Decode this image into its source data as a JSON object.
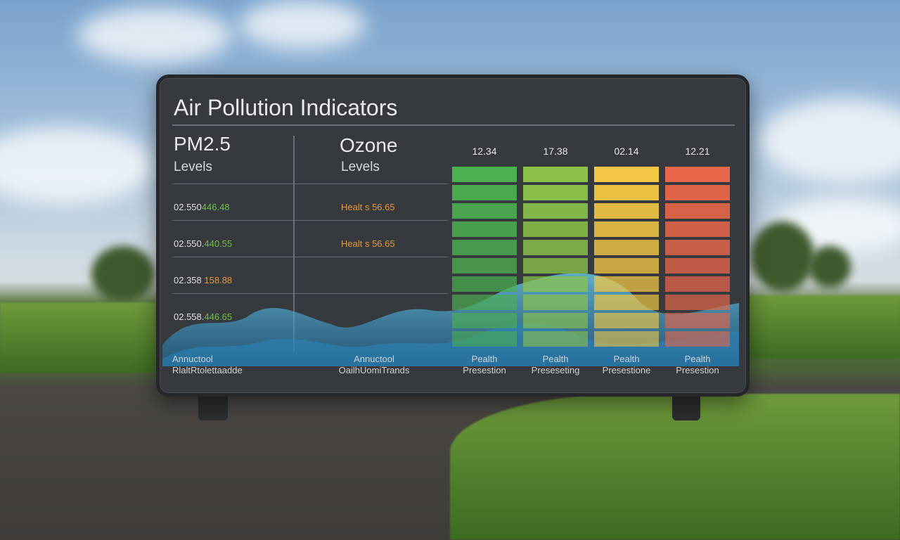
{
  "scene": {
    "ground_color": "#4a4744",
    "sky_color": "#7aa3cc"
  },
  "board": {
    "title": "Air Pollution Indicators",
    "pm": {
      "title": "PM2.5",
      "subtitle": "Levels",
      "rows": [
        {
          "a": "02.550",
          "b": "446.48"
        },
        {
          "a": "02.550.",
          "b": "440.55"
        },
        {
          "a": "02.358",
          "b": "158.88"
        },
        {
          "a": "02.558.",
          "b": "446.65"
        }
      ],
      "footer_line1": "Annuctool",
      "footer_line2": "RlaltRtolettaadde"
    },
    "ozone": {
      "title": "Ozone",
      "subtitle": "Levels",
      "rows": [
        "Healt s 56.65",
        "Healt s 56.65"
      ],
      "footer_line1": "Annuctool",
      "footer_line2": "OailhUomiTrands"
    },
    "columns": [
      {
        "value": "12.34",
        "color": "#4caf50",
        "footer_line1": "Pealth",
        "footer_line2": "Presestion"
      },
      {
        "value": "17.38",
        "color": "#8bc34a",
        "footer_line1": "Pealth",
        "footer_line2": "Preseseting"
      },
      {
        "value": "02.14",
        "color": "#f2c744",
        "footer_line1": "Pealth",
        "footer_line2": "Presestione"
      },
      {
        "value": "12.21",
        "color": "#e8664a",
        "footer_line1": "Pealth",
        "footer_line2": "Presestion"
      }
    ]
  }
}
